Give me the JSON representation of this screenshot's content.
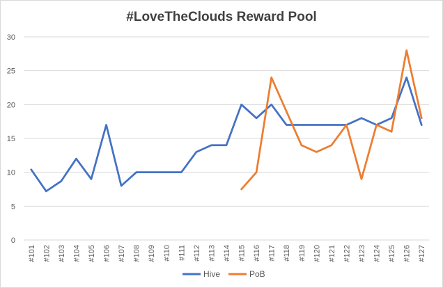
{
  "chart_data": {
    "type": "line",
    "title": "#LoveTheClouds Reward Pool",
    "xlabel": "",
    "ylabel": "",
    "ylim": [
      0,
      30
    ],
    "yticks": [
      0,
      5,
      10,
      15,
      20,
      25,
      30
    ],
    "grid": true,
    "legend_position": "bottom",
    "categories": [
      "#101",
      "#102",
      "#103",
      "#104",
      "#105",
      "#106",
      "#107",
      "#108",
      "#109",
      "#110",
      "#111",
      "#112",
      "#113",
      "#114",
      "#115",
      "#116",
      "#117",
      "#118",
      "#119",
      "#120",
      "#121",
      "#122",
      "#123",
      "#124",
      "#125",
      "#126",
      "#127"
    ],
    "series": [
      {
        "name": "Hive",
        "color": "#4472c4",
        "values": [
          10.4,
          7.2,
          8.7,
          12,
          9,
          17,
          8,
          10,
          10,
          10,
          10,
          13,
          14,
          14,
          20,
          18,
          20,
          17,
          17,
          17,
          17,
          17,
          18,
          17,
          18,
          24,
          17
        ]
      },
      {
        "name": "PoB",
        "color": "#ed7d31",
        "values": [
          null,
          null,
          null,
          null,
          null,
          null,
          null,
          null,
          null,
          null,
          null,
          null,
          null,
          null,
          7.5,
          10,
          24,
          19,
          14,
          13,
          14,
          17,
          9,
          17,
          16,
          28,
          18
        ]
      }
    ]
  }
}
